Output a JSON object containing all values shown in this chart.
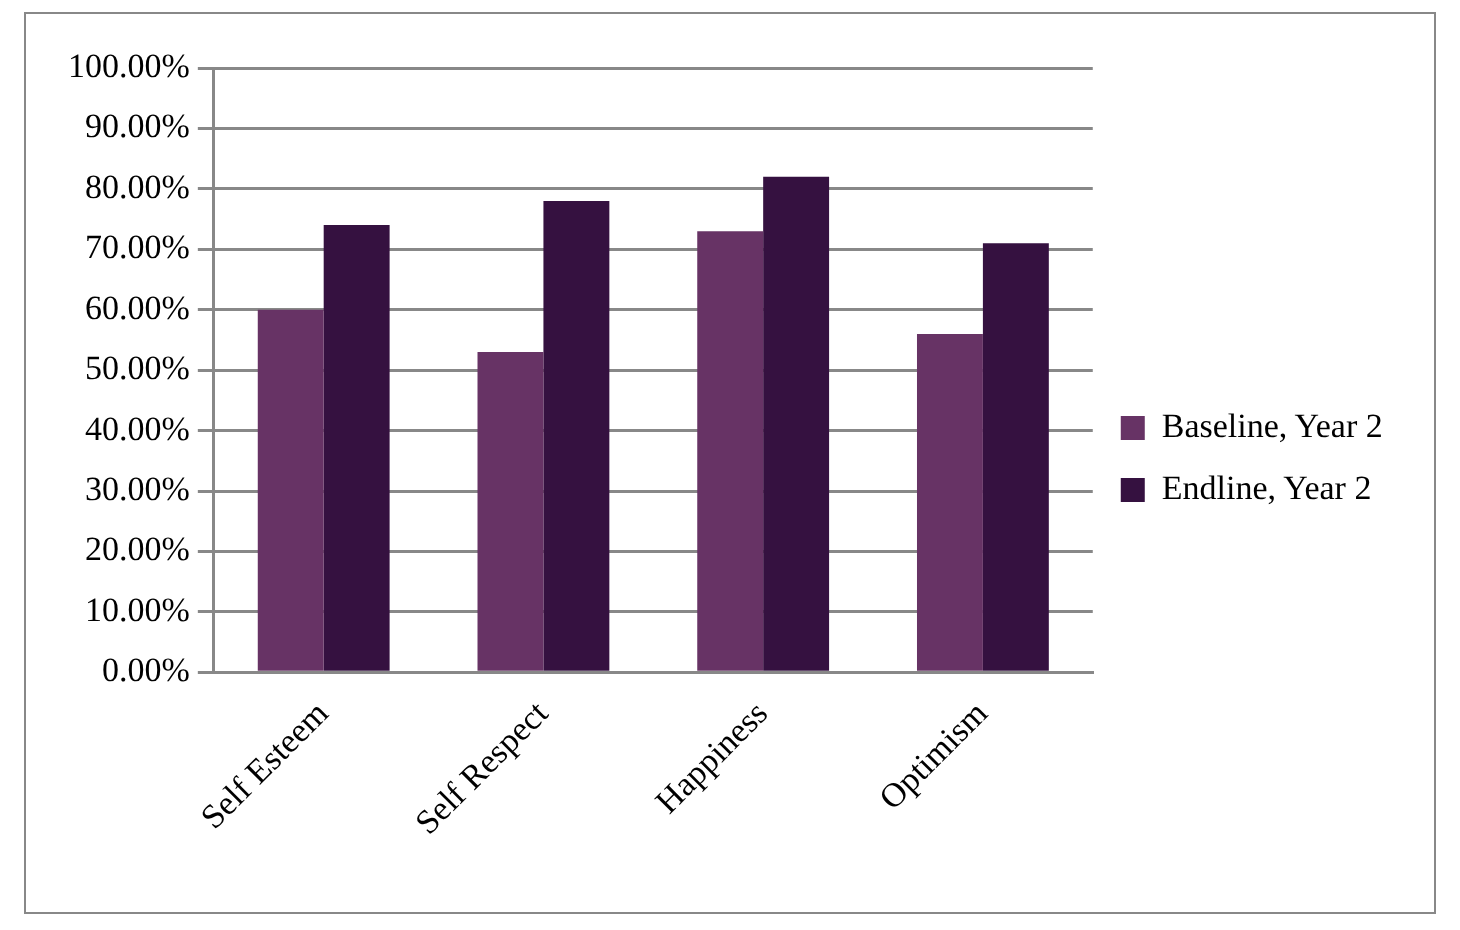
{
  "chart_data": {
    "type": "bar",
    "categories": [
      "Self Esteem",
      "Self Respect",
      "Happiness",
      "Optimism"
    ],
    "series": [
      {
        "name": "Baseline, Year 2",
        "color": "#673365",
        "values": [
          60,
          53,
          73,
          56
        ]
      },
      {
        "name": "Endline, Year 2",
        "color": "#351140",
        "values": [
          74,
          78,
          82,
          71
        ]
      }
    ],
    "ylim": [
      0,
      100
    ],
    "yticks": [
      {
        "value": 0,
        "label": "0.00%"
      },
      {
        "value": 10,
        "label": "10.00%"
      },
      {
        "value": 20,
        "label": "20.00%"
      },
      {
        "value": 30,
        "label": "30.00%"
      },
      {
        "value": 40,
        "label": "40.00%"
      },
      {
        "value": 50,
        "label": "50.00%"
      },
      {
        "value": 60,
        "label": "60.00%"
      },
      {
        "value": 70,
        "label": "70.00%"
      },
      {
        "value": 80,
        "label": "80.00%"
      },
      {
        "value": 90,
        "label": "90.00%"
      },
      {
        "value": 100,
        "label": "100.00%"
      }
    ],
    "grid": "y",
    "legend": "right"
  }
}
